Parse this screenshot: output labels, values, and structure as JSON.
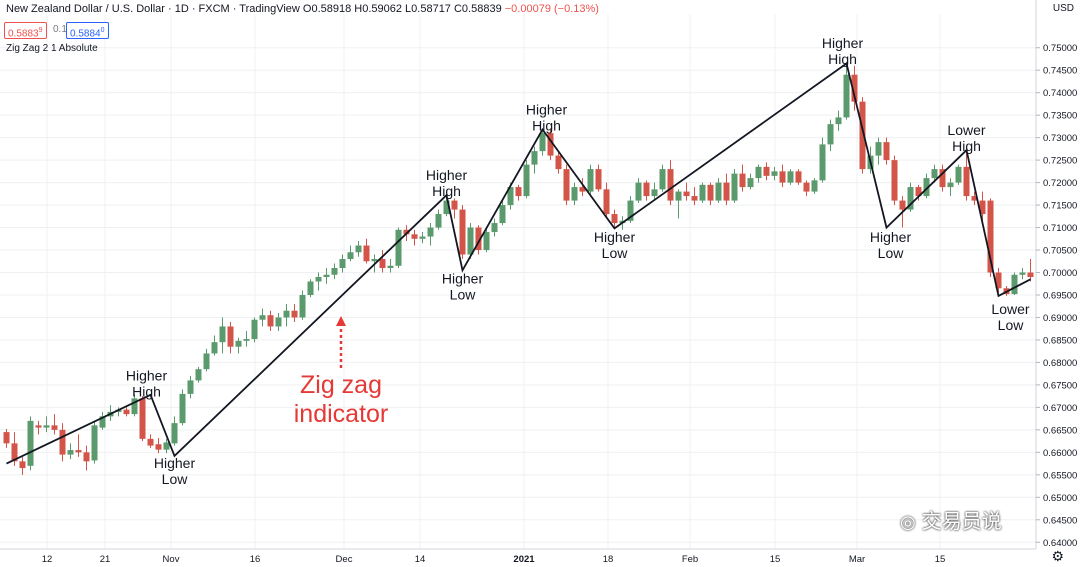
{
  "header": {
    "symbol": "New Zealand Dollar / U.S. Dollar · 1D · FXCM · TradingView",
    "ohlc": "O0.58918 H0.59062 L0.58717 C0.58839",
    "change": "−0.00079 (−0.13%)"
  },
  "trade_box": {
    "sell": "0.5883",
    "sell_sup": "9",
    "spread": "0.1",
    "buy": "0.5884",
    "buy_sup": "0"
  },
  "indicator_label": "Zig Zag 2 1 Absolute",
  "currency": "USD",
  "watermark": "交易员说",
  "colors": {
    "up": "#5b9a6d",
    "down": "#d35448",
    "zigzag": "#131722",
    "annotation_red": "#e53935",
    "grid": "#eef0f3"
  },
  "chart_data": {
    "type": "candlestick",
    "y_axis": {
      "min": 0.6385,
      "max": 0.7575,
      "ticks": [
        "0.64000",
        "0.64500",
        "0.65000",
        "0.65500",
        "0.66000",
        "0.66500",
        "0.67000",
        "0.67500",
        "0.68000",
        "0.68500",
        "0.69000",
        "0.69500",
        "0.70000",
        "0.70500",
        "0.71000",
        "0.71500",
        "0.72000",
        "0.72500",
        "0.73000",
        "0.73500",
        "0.74000",
        "0.74500",
        "0.75000"
      ]
    },
    "x_axis": {
      "labels": [
        "12",
        "21",
        "Nov",
        "16",
        "Dec",
        "14",
        "2021",
        "18",
        "Feb",
        "15",
        "Mar",
        "15"
      ],
      "bold": [
        "2021"
      ]
    },
    "zigzag": [
      {
        "bar": 0,
        "price": 0.6575
      },
      {
        "bar": 18,
        "price": 0.6728
      },
      {
        "bar": 21,
        "price": 0.6592
      },
      {
        "bar": 55,
        "price": 0.7172
      },
      {
        "bar": 57,
        "price": 0.7005
      },
      {
        "bar": 67,
        "price": 0.7318
      },
      {
        "bar": 76,
        "price": 0.7098
      },
      {
        "bar": 105,
        "price": 0.7465
      },
      {
        "bar": 110,
        "price": 0.71
      },
      {
        "bar": 120,
        "price": 0.7272
      },
      {
        "bar": 124,
        "price": 0.6948
      },
      {
        "bar": 128,
        "price": 0.6985
      }
    ],
    "annotations": [
      {
        "lines": [
          "Higher",
          "High"
        ],
        "bar": 17.5,
        "price": 0.676
      },
      {
        "lines": [
          "Higher",
          "Low"
        ],
        "bar": 21,
        "price": 0.6565
      },
      {
        "lines": [
          "Higher",
          "High"
        ],
        "bar": 55,
        "price": 0.7206
      },
      {
        "lines": [
          "Higher",
          "Low"
        ],
        "bar": 57,
        "price": 0.6975
      },
      {
        "lines": [
          "Higher",
          "High"
        ],
        "bar": 67.5,
        "price": 0.7352
      },
      {
        "lines": [
          "Higher",
          "Low"
        ],
        "bar": 76,
        "price": 0.7068
      },
      {
        "lines": [
          "Higher",
          "High"
        ],
        "bar": 104.5,
        "price": 0.7499
      },
      {
        "lines": [
          "Higher",
          "Low"
        ],
        "bar": 110.5,
        "price": 0.7068
      },
      {
        "lines": [
          "Lower",
          "High"
        ],
        "bar": 120,
        "price": 0.7306
      },
      {
        "lines": [
          "Lower",
          "Low"
        ],
        "bar": 125.5,
        "price": 0.6908
      }
    ],
    "callout": {
      "lines": [
        "Zig zag",
        "indicator"
      ]
    },
    "candles": [
      [
        0.6645,
        0.6652,
        0.661,
        0.662
      ],
      [
        0.662,
        0.6645,
        0.657,
        0.658
      ],
      [
        0.658,
        0.659,
        0.655,
        0.6565
      ],
      [
        0.657,
        0.668,
        0.656,
        0.667
      ],
      [
        0.666,
        0.667,
        0.664,
        0.6655
      ],
      [
        0.6655,
        0.668,
        0.6645,
        0.666
      ],
      [
        0.666,
        0.6685,
        0.664,
        0.665
      ],
      [
        0.665,
        0.6665,
        0.658,
        0.6595
      ],
      [
        0.6595,
        0.662,
        0.6585,
        0.6605
      ],
      [
        0.6605,
        0.664,
        0.659,
        0.66
      ],
      [
        0.66,
        0.6615,
        0.656,
        0.658
      ],
      [
        0.6582,
        0.6668,
        0.6575,
        0.666
      ],
      [
        0.6655,
        0.669,
        0.665,
        0.668
      ],
      [
        0.668,
        0.6705,
        0.667,
        0.669
      ],
      [
        0.669,
        0.67,
        0.668,
        0.6695
      ],
      [
        0.6695,
        0.67,
        0.668,
        0.6685
      ],
      [
        0.6685,
        0.673,
        0.668,
        0.672
      ],
      [
        0.672,
        0.6725,
        0.6625,
        0.663
      ],
      [
        0.663,
        0.664,
        0.661,
        0.6615
      ],
      [
        0.6618,
        0.6632,
        0.6598,
        0.6606
      ],
      [
        0.6606,
        0.663,
        0.6598,
        0.6622
      ],
      [
        0.662,
        0.668,
        0.6615,
        0.6665
      ],
      [
        0.6665,
        0.674,
        0.666,
        0.673
      ],
      [
        0.673,
        0.677,
        0.672,
        0.676
      ],
      [
        0.676,
        0.679,
        0.6755,
        0.6785
      ],
      [
        0.6785,
        0.683,
        0.678,
        0.682
      ],
      [
        0.682,
        0.686,
        0.6815,
        0.6845
      ],
      [
        0.6845,
        0.69,
        0.682,
        0.688
      ],
      [
        0.688,
        0.689,
        0.682,
        0.6835
      ],
      [
        0.6835,
        0.6855,
        0.682,
        0.6848
      ],
      [
        0.6848,
        0.687,
        0.6835,
        0.6852
      ],
      [
        0.6852,
        0.69,
        0.6845,
        0.6895
      ],
      [
        0.6895,
        0.692,
        0.688,
        0.6905
      ],
      [
        0.6905,
        0.6915,
        0.687,
        0.688
      ],
      [
        0.688,
        0.691,
        0.687,
        0.69
      ],
      [
        0.69,
        0.693,
        0.688,
        0.6915
      ],
      [
        0.6915,
        0.693,
        0.689,
        0.69
      ],
      [
        0.69,
        0.696,
        0.6895,
        0.695
      ],
      [
        0.695,
        0.6985,
        0.6945,
        0.698
      ],
      [
        0.698,
        0.7,
        0.696,
        0.699
      ],
      [
        0.699,
        0.701,
        0.6975,
        0.6995
      ],
      [
        0.6995,
        0.702,
        0.6985,
        0.701
      ],
      [
        0.701,
        0.704,
        0.7,
        0.703
      ],
      [
        0.703,
        0.706,
        0.7025,
        0.7045
      ],
      [
        0.7045,
        0.707,
        0.7035,
        0.706
      ],
      [
        0.706,
        0.7075,
        0.702,
        0.7025
      ],
      [
        0.7025,
        0.704,
        0.7,
        0.703
      ],
      [
        0.703,
        0.705,
        0.7,
        0.701
      ],
      [
        0.701,
        0.703,
        0.7,
        0.7015
      ],
      [
        0.7015,
        0.71,
        0.701,
        0.7095
      ],
      [
        0.7095,
        0.7105,
        0.707,
        0.7085
      ],
      [
        0.7085,
        0.7095,
        0.706,
        0.7075
      ],
      [
        0.7075,
        0.709,
        0.7065,
        0.708
      ],
      [
        0.708,
        0.711,
        0.706,
        0.71
      ],
      [
        0.71,
        0.714,
        0.7095,
        0.713
      ],
      [
        0.713,
        0.7172,
        0.7125,
        0.716
      ],
      [
        0.716,
        0.7165,
        0.712,
        0.714
      ],
      [
        0.714,
        0.715,
        0.703,
        0.704
      ],
      [
        0.704,
        0.711,
        0.703,
        0.71
      ],
      [
        0.71,
        0.7105,
        0.704,
        0.705
      ],
      [
        0.705,
        0.71,
        0.7045,
        0.709
      ],
      [
        0.709,
        0.712,
        0.708,
        0.711
      ],
      [
        0.711,
        0.716,
        0.7105,
        0.715
      ],
      [
        0.715,
        0.72,
        0.714,
        0.719
      ],
      [
        0.719,
        0.7195,
        0.716,
        0.717
      ],
      [
        0.717,
        0.725,
        0.7165,
        0.724
      ],
      [
        0.724,
        0.728,
        0.722,
        0.727
      ],
      [
        0.727,
        0.7318,
        0.726,
        0.731
      ],
      [
        0.731,
        0.732,
        0.725,
        0.726
      ],
      [
        0.726,
        0.727,
        0.722,
        0.723
      ],
      [
        0.723,
        0.724,
        0.715,
        0.716
      ],
      [
        0.716,
        0.72,
        0.715,
        0.719
      ],
      [
        0.719,
        0.721,
        0.717,
        0.718
      ],
      [
        0.718,
        0.724,
        0.7175,
        0.723
      ],
      [
        0.723,
        0.724,
        0.718,
        0.7185
      ],
      [
        0.7185,
        0.72,
        0.712,
        0.713
      ],
      [
        0.713,
        0.714,
        0.7098,
        0.711
      ],
      [
        0.711,
        0.7125,
        0.7095,
        0.7115
      ],
      [
        0.7115,
        0.717,
        0.711,
        0.716
      ],
      [
        0.716,
        0.721,
        0.7155,
        0.72
      ],
      [
        0.72,
        0.7205,
        0.716,
        0.717
      ],
      [
        0.717,
        0.72,
        0.716,
        0.7185
      ],
      [
        0.7185,
        0.724,
        0.718,
        0.723
      ],
      [
        0.723,
        0.725,
        0.715,
        0.716
      ],
      [
        0.716,
        0.7185,
        0.712,
        0.718
      ],
      [
        0.718,
        0.72,
        0.716,
        0.717
      ],
      [
        0.717,
        0.719,
        0.715,
        0.716
      ],
      [
        0.716,
        0.72,
        0.7155,
        0.7195
      ],
      [
        0.7195,
        0.72,
        0.715,
        0.716
      ],
      [
        0.716,
        0.721,
        0.7155,
        0.72
      ],
      [
        0.72,
        0.722,
        0.715,
        0.716
      ],
      [
        0.716,
        0.723,
        0.7155,
        0.722
      ],
      [
        0.722,
        0.724,
        0.718,
        0.719
      ],
      [
        0.719,
        0.722,
        0.7185,
        0.721
      ],
      [
        0.721,
        0.724,
        0.72,
        0.7235
      ],
      [
        0.7235,
        0.7245,
        0.7205,
        0.7215
      ],
      [
        0.7215,
        0.7235,
        0.7205,
        0.7225
      ],
      [
        0.7225,
        0.724,
        0.719,
        0.72
      ],
      [
        0.72,
        0.723,
        0.7195,
        0.7225
      ],
      [
        0.7225,
        0.723,
        0.7195,
        0.72
      ],
      [
        0.72,
        0.7205,
        0.717,
        0.718
      ],
      [
        0.718,
        0.721,
        0.7175,
        0.7205
      ],
      [
        0.7205,
        0.73,
        0.72,
        0.7285
      ],
      [
        0.7285,
        0.734,
        0.727,
        0.733
      ],
      [
        0.733,
        0.736,
        0.7315,
        0.7345
      ],
      [
        0.7345,
        0.7465,
        0.734,
        0.744
      ],
      [
        0.744,
        0.746,
        0.736,
        0.738
      ],
      [
        0.738,
        0.739,
        0.722,
        0.723
      ],
      [
        0.723,
        0.728,
        0.722,
        0.726
      ],
      [
        0.726,
        0.73,
        0.724,
        0.729
      ],
      [
        0.729,
        0.73,
        0.724,
        0.725
      ],
      [
        0.725,
        0.726,
        0.715,
        0.716
      ],
      [
        0.716,
        0.717,
        0.71,
        0.714
      ],
      [
        0.714,
        0.72,
        0.7135,
        0.719
      ],
      [
        0.719,
        0.7195,
        0.716,
        0.717
      ],
      [
        0.717,
        0.722,
        0.7165,
        0.721
      ],
      [
        0.721,
        0.724,
        0.72,
        0.723
      ],
      [
        0.723,
        0.724,
        0.718,
        0.719
      ],
      [
        0.719,
        0.721,
        0.717,
        0.72
      ],
      [
        0.72,
        0.724,
        0.7195,
        0.7235
      ],
      [
        0.7235,
        0.7272,
        0.716,
        0.717
      ],
      [
        0.717,
        0.718,
        0.715,
        0.716
      ],
      [
        0.716,
        0.718,
        0.711,
        0.713
      ],
      [
        0.716,
        0.7165,
        0.699,
        0.7
      ],
      [
        0.7,
        0.701,
        0.6955,
        0.6965
      ],
      [
        0.6965,
        0.697,
        0.6948,
        0.6952
      ],
      [
        0.6952,
        0.7,
        0.695,
        0.6995
      ],
      [
        0.6995,
        0.701,
        0.6985,
        0.7
      ],
      [
        0.7,
        0.703,
        0.698,
        0.699
      ]
    ]
  }
}
